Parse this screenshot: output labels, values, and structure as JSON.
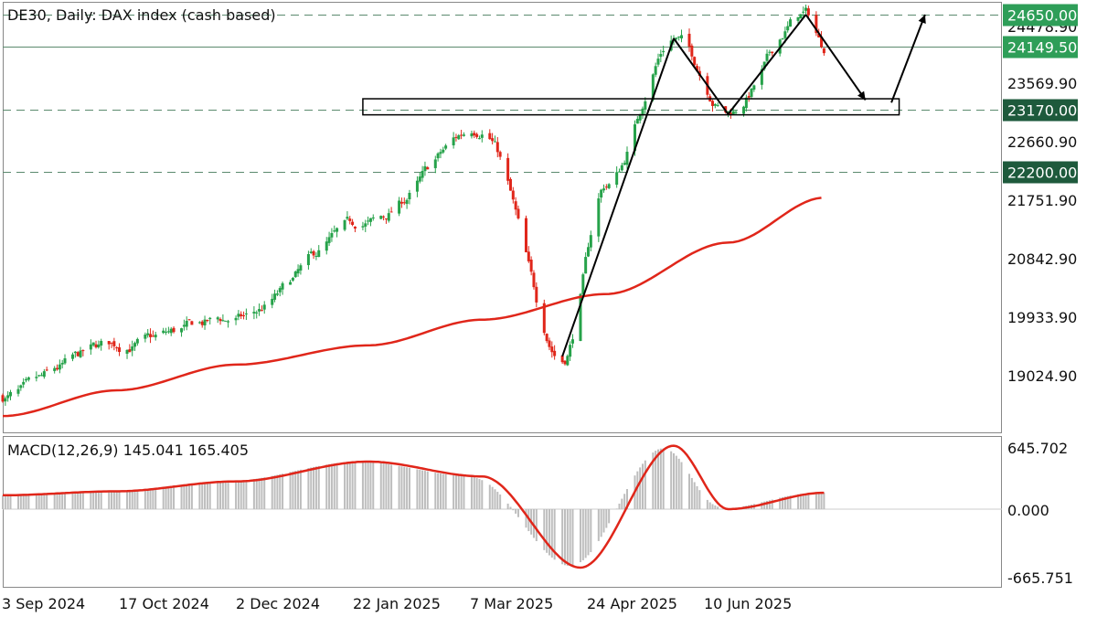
{
  "window": {
    "symbol": "DE30",
    "timeframe": "Daily:",
    "description": "DAX index (cash based)"
  },
  "colors": {
    "bull": "#26a24a",
    "bear": "#e0261a",
    "ma": "#e0261a",
    "macd_signal": "#e0261a",
    "macd_hist": "#bdbdbd",
    "grid": "#5b8a6e",
    "tag_dark": "#1e5a3c",
    "tag_green": "#2e9e58",
    "drawing": "#000000"
  },
  "price_axis": {
    "ticks": [
      "24478.90",
      "23569.90",
      "22660.90",
      "21751.90",
      "20842.90",
      "19933.90",
      "19024.90"
    ]
  },
  "level_tags": [
    {
      "value": 24650.0,
      "label": "24650.00",
      "style": "dashed",
      "tag": "green"
    },
    {
      "value": 24149.5,
      "label": "24149.50",
      "style": "solid",
      "tag": "green"
    },
    {
      "value": 23170.0,
      "label": "23170.00",
      "style": "dashed",
      "tag": "dark"
    },
    {
      "value": 22200.0,
      "label": "22200.00",
      "style": "dashed",
      "tag": "dark"
    }
  ],
  "macd_panel": {
    "title": "MACD(12,26,9) 145.041 165.405",
    "ticks": [
      "645.702",
      "0.000",
      "-665.751"
    ]
  },
  "time_axis": {
    "labels": [
      "3 Sep 2024",
      "17 Oct 2024",
      "2 Dec 2024",
      "22 Jan 2025",
      "7 Mar 2025",
      "24 Apr 2025",
      "10 Jun 2025"
    ]
  },
  "chart_data": {
    "type": "candlestick",
    "timeframe": "daily",
    "x_start": "3 Sep 2024",
    "x_end": "mid Jul 2025",
    "close_path": [
      [
        "3 Sep 2024",
        18700
      ],
      [
        "17 Oct 2024",
        19500
      ],
      [
        "2 Dec 2024",
        19900
      ],
      [
        "22 Jan 2025",
        21400
      ],
      [
        "7 Mar 2025",
        22900
      ],
      [
        "7 Apr 2025",
        19300
      ],
      [
        "24 Apr 2025",
        22000
      ],
      [
        "20 May 2025",
        24300
      ],
      [
        "10 Jun 2025",
        23150
      ],
      [
        "10 Jul 2025",
        24650
      ],
      [
        "17 Jul 2025",
        24149.5
      ]
    ],
    "moving_average": [
      [
        "3 Sep 2024",
        18400
      ],
      [
        "17 Oct 2024",
        18800
      ],
      [
        "2 Dec 2024",
        19200
      ],
      [
        "22 Jan 2025",
        19500
      ],
      [
        "7 Mar 2025",
        19900
      ],
      [
        "24 Apr 2025",
        20300
      ],
      [
        "10 Jun 2025",
        21100
      ],
      [
        "17 Jul 2025",
        21800
      ]
    ],
    "levels": [
      24650.0,
      24149.5,
      23170.0,
      22200.0
    ],
    "support_zone": [
      23090,
      23340
    ],
    "macd_signal_path": [
      [
        "3 Sep 2024",
        140
      ],
      [
        "17 Oct 2024",
        180
      ],
      [
        "2 Dec 2024",
        280
      ],
      [
        "22 Jan 2025",
        480
      ],
      [
        "7 Mar 2025",
        330
      ],
      [
        "14 Apr 2025",
        -590
      ],
      [
        "20 May 2025",
        640
      ],
      [
        "10 Jun 2025",
        0
      ],
      [
        "17 Jul 2025",
        165.405
      ]
    ],
    "ylim_price": [
      18700,
      24900
    ],
    "ylim_macd": [
      -750,
      750
    ]
  }
}
